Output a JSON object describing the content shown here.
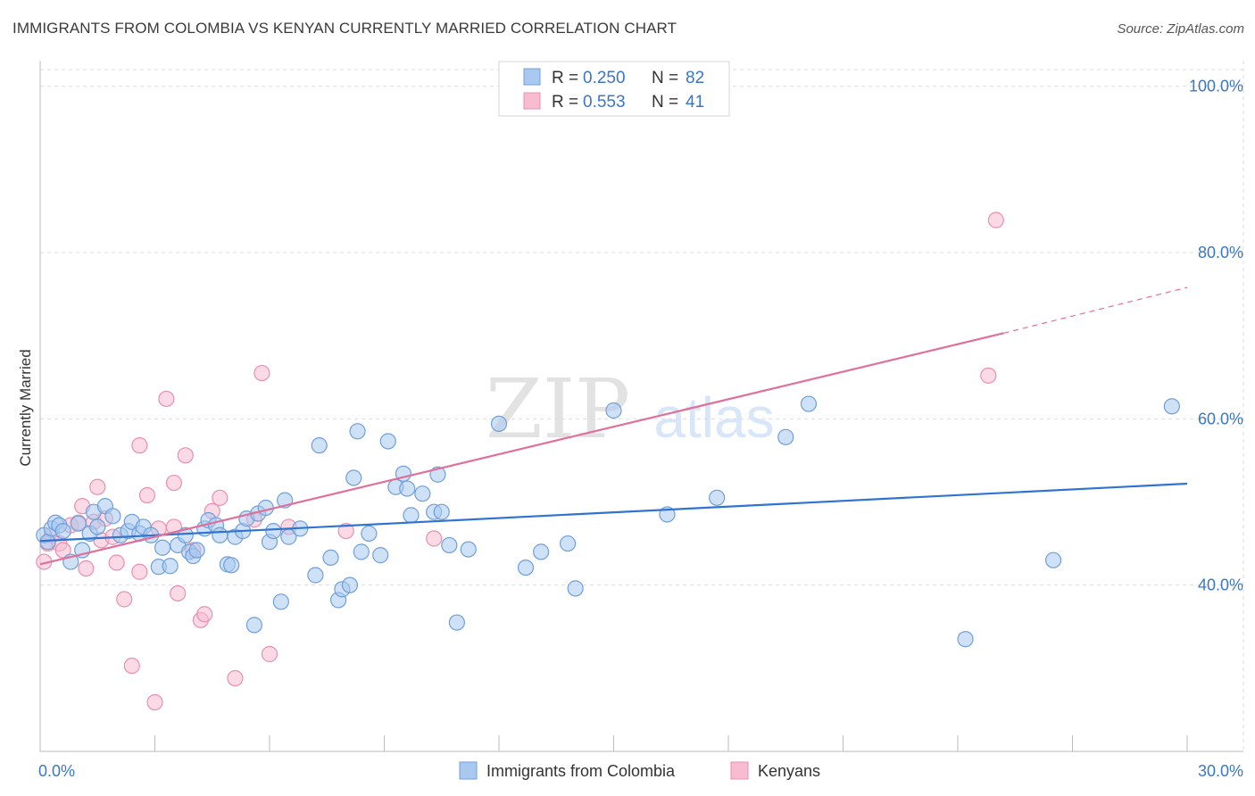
{
  "header": {
    "title": "IMMIGRANTS FROM COLOMBIA VS KENYAN CURRENTLY MARRIED CORRELATION CHART",
    "source": "Source: ZipAtlas.com"
  },
  "watermark": {
    "zip": "ZIP",
    "atlas": "atlas"
  },
  "colors": {
    "blue_fill": "#a8c8f0",
    "blue_stroke": "#6f9fd8",
    "blue_line": "#2f74d0",
    "pink_fill": "#f8bcd0",
    "pink_stroke": "#e890ae",
    "pink_line": "#e0709a",
    "axis_text": "#3a76c8",
    "grid": "#dcdcdc"
  },
  "legend": {
    "rows": [
      {
        "r_label": "R =",
        "r_value": "0.250",
        "n_label": "N =",
        "n_value": "82"
      },
      {
        "r_label": "R =",
        "r_value": "0.553",
        "n_label": "N =",
        "n_value": "41"
      }
    ]
  },
  "bottom_legend": [
    "Immigrants from Colombia",
    "Kenyans"
  ],
  "chart_data": {
    "type": "scatter",
    "title": "IMMIGRANTS FROM COLOMBIA VS KENYAN CURRENTLY MARRIED CORRELATION CHART",
    "xlabel": "",
    "ylabel": "Currently Married",
    "xlim": [
      0,
      30
    ],
    "ylim": [
      20,
      102
    ],
    "x_tick_labels": [
      "0.0%",
      "30.0%"
    ],
    "y_ticks": [
      40,
      60,
      80,
      100
    ],
    "y_tick_labels": [
      "40.0%",
      "60.0%",
      "80.0%",
      "100.0%"
    ],
    "legend_position": "top-center",
    "series": [
      {
        "name": "Immigrants from Colombia",
        "r": 0.25,
        "n": 82,
        "trend": {
          "x": [
            0,
            30
          ],
          "y": [
            45.3,
            52.2
          ],
          "dashed_from": null
        },
        "points": [
          [
            0.1,
            46.0
          ],
          [
            0.2,
            45.2
          ],
          [
            0.3,
            46.8
          ],
          [
            0.4,
            47.5
          ],
          [
            0.5,
            47.2
          ],
          [
            0.6,
            46.5
          ],
          [
            0.8,
            42.8
          ],
          [
            1.0,
            47.4
          ],
          [
            1.1,
            44.2
          ],
          [
            1.3,
            46.2
          ],
          [
            1.4,
            48.8
          ],
          [
            1.5,
            47.0
          ],
          [
            1.7,
            49.5
          ],
          [
            1.9,
            48.3
          ],
          [
            2.1,
            46.0
          ],
          [
            2.3,
            46.5
          ],
          [
            2.4,
            47.6
          ],
          [
            2.6,
            46.2
          ],
          [
            2.7,
            47.0
          ],
          [
            2.9,
            46.0
          ],
          [
            3.1,
            42.2
          ],
          [
            3.2,
            44.5
          ],
          [
            3.4,
            42.3
          ],
          [
            3.6,
            44.8
          ],
          [
            3.8,
            46.0
          ],
          [
            3.9,
            44.0
          ],
          [
            4.0,
            43.5
          ],
          [
            4.1,
            44.2
          ],
          [
            4.3,
            46.8
          ],
          [
            4.4,
            47.8
          ],
          [
            4.6,
            47.2
          ],
          [
            4.7,
            46.0
          ],
          [
            4.9,
            42.5
          ],
          [
            5.0,
            42.4
          ],
          [
            5.1,
            45.8
          ],
          [
            5.3,
            46.5
          ],
          [
            5.4,
            48.0
          ],
          [
            5.6,
            35.2
          ],
          [
            5.7,
            48.6
          ],
          [
            5.9,
            49.3
          ],
          [
            6.0,
            45.2
          ],
          [
            6.1,
            46.5
          ],
          [
            6.3,
            38.0
          ],
          [
            6.4,
            50.2
          ],
          [
            6.5,
            45.8
          ],
          [
            6.8,
            46.8
          ],
          [
            7.2,
            41.2
          ],
          [
            7.3,
            56.8
          ],
          [
            7.6,
            43.3
          ],
          [
            7.8,
            38.2
          ],
          [
            7.9,
            39.5
          ],
          [
            8.1,
            40.0
          ],
          [
            8.2,
            52.9
          ],
          [
            8.3,
            58.5
          ],
          [
            8.4,
            44.0
          ],
          [
            8.6,
            46.2
          ],
          [
            8.9,
            43.6
          ],
          [
            9.1,
            57.3
          ],
          [
            9.3,
            51.8
          ],
          [
            9.5,
            53.4
          ],
          [
            9.6,
            51.6
          ],
          [
            9.7,
            48.4
          ],
          [
            10.0,
            51.0
          ],
          [
            10.3,
            48.8
          ],
          [
            10.4,
            53.3
          ],
          [
            10.5,
            48.8
          ],
          [
            10.7,
            44.8
          ],
          [
            10.9,
            35.5
          ],
          [
            11.2,
            44.3
          ],
          [
            12.0,
            59.4
          ],
          [
            12.7,
            42.1
          ],
          [
            13.1,
            44.0
          ],
          [
            13.8,
            45.0
          ],
          [
            14.0,
            39.6
          ],
          [
            15.0,
            61.0
          ],
          [
            16.4,
            48.5
          ],
          [
            17.7,
            50.5
          ],
          [
            19.5,
            57.8
          ],
          [
            20.1,
            61.8
          ],
          [
            24.2,
            33.5
          ],
          [
            26.5,
            43.0
          ],
          [
            29.6,
            61.5
          ]
        ]
      },
      {
        "name": "Kenyans",
        "r": 0.553,
        "n": 41,
        "trend": {
          "x": [
            0,
            25.2
          ],
          "y": [
            42.5,
            70.3
          ],
          "dash_x": [
            25.2,
            30
          ],
          "dash_y": [
            70.3,
            75.8
          ]
        },
        "points": [
          [
            0.1,
            42.8
          ],
          [
            0.2,
            45.0
          ],
          [
            0.3,
            46.0
          ],
          [
            0.5,
            45.0
          ],
          [
            0.6,
            44.2
          ],
          [
            0.8,
            47.2
          ],
          [
            1.0,
            47.5
          ],
          [
            1.1,
            49.5
          ],
          [
            1.2,
            42.0
          ],
          [
            1.4,
            47.6
          ],
          [
            1.5,
            51.8
          ],
          [
            1.6,
            45.4
          ],
          [
            1.7,
            48.0
          ],
          [
            1.9,
            45.8
          ],
          [
            2.0,
            42.7
          ],
          [
            2.2,
            38.3
          ],
          [
            2.4,
            30.3
          ],
          [
            2.6,
            56.8
          ],
          [
            2.6,
            41.6
          ],
          [
            2.8,
            50.8
          ],
          [
            3.0,
            25.9
          ],
          [
            3.1,
            46.8
          ],
          [
            3.3,
            62.4
          ],
          [
            3.5,
            52.3
          ],
          [
            3.6,
            39.0
          ],
          [
            3.8,
            55.6
          ],
          [
            4.0,
            44.2
          ],
          [
            4.2,
            35.8
          ],
          [
            4.3,
            36.5
          ],
          [
            4.5,
            48.9
          ],
          [
            4.7,
            50.5
          ],
          [
            5.1,
            28.8
          ],
          [
            5.6,
            47.9
          ],
          [
            5.8,
            65.5
          ],
          [
            6.0,
            31.7
          ],
          [
            6.5,
            47.0
          ],
          [
            8.0,
            46.5
          ],
          [
            10.3,
            45.6
          ],
          [
            24.8,
            65.2
          ],
          [
            25.0,
            83.9
          ],
          [
            3.5,
            47.0
          ]
        ]
      }
    ]
  }
}
